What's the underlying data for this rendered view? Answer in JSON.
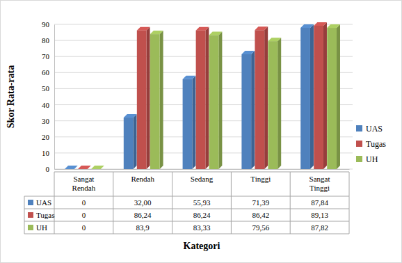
{
  "chart_data": {
    "type": "bar",
    "x_label": "Kategori",
    "y_label": "Skor Rata-rata",
    "categories": [
      "Sangat Rendah",
      "Rendah",
      "Sedang",
      "Tinggi",
      "Sangat Tinggi"
    ],
    "series": [
      {
        "name": "UAS",
        "color": "#4f81bd",
        "values": [
          0,
          32.0,
          55.93,
          71.39,
          87.84
        ],
        "value_labels": [
          "0",
          "32,00",
          "55,93",
          "71,39",
          "87,84"
        ]
      },
      {
        "name": "Tugas",
        "color": "#c0504d",
        "values": [
          0,
          86.24,
          86.24,
          86.42,
          89.13
        ],
        "value_labels": [
          "0",
          "86,24",
          "86,24",
          "86,42",
          "89,13"
        ]
      },
      {
        "name": "UH",
        "color": "#9bbb59",
        "values": [
          0,
          83.9,
          83.33,
          79.56,
          87.82
        ],
        "value_labels": [
          "0",
          "83,9",
          "83,33",
          "79,56",
          "87,82"
        ]
      }
    ],
    "ylim": [
      0,
      90
    ],
    "yticks": [
      0,
      10,
      20,
      30,
      40,
      50,
      60,
      70,
      80,
      90
    ],
    "grid": true,
    "legend": "right"
  }
}
